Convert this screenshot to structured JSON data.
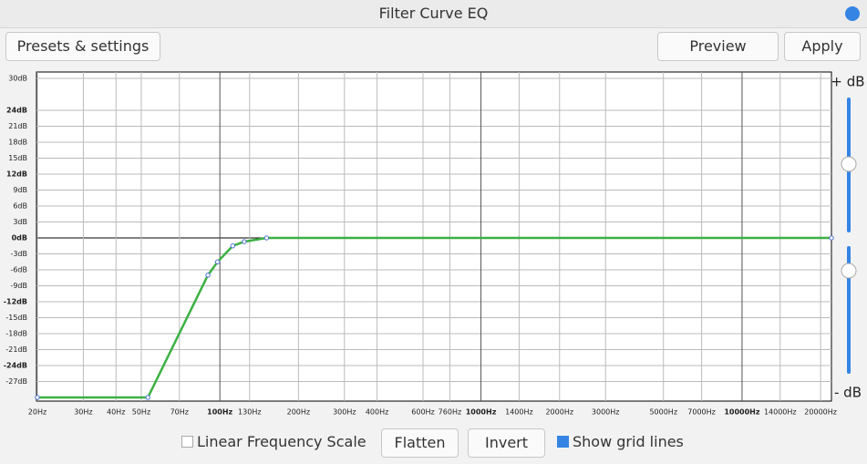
{
  "window": {
    "title": "Filter Curve EQ"
  },
  "buttons": {
    "presets": "Presets & settings",
    "preview": "Preview",
    "apply": "Apply",
    "flatten": "Flatten",
    "invert": "Invert"
  },
  "checkboxes": {
    "linear": {
      "label": "Linear Frequency Scale",
      "checked": false
    },
    "grid": {
      "label": "Show grid lines",
      "checked": true
    }
  },
  "sliders": {
    "top": "+ dB",
    "bottom": "- dB"
  },
  "chart_data": {
    "type": "line",
    "log_x": true,
    "grid": true,
    "xlim": [
      20,
      22000
    ],
    "ylim": [
      -30,
      30
    ],
    "xticks": [
      {
        "value": 20,
        "label": "20Hz"
      },
      {
        "value": 30,
        "label": "30Hz"
      },
      {
        "value": 40,
        "label": "40Hz"
      },
      {
        "value": 50,
        "label": "50Hz"
      },
      {
        "value": 70,
        "label": "70Hz"
      },
      {
        "value": 100,
        "label": "100Hz"
      },
      {
        "value": 130,
        "label": "130Hz"
      },
      {
        "value": 200,
        "label": "200Hz"
      },
      {
        "value": 300,
        "label": "300Hz"
      },
      {
        "value": 400,
        "label": "400Hz"
      },
      {
        "value": 600,
        "label": "600Hz"
      },
      {
        "value": 760,
        "label": "760Hz"
      },
      {
        "value": 1000,
        "label": "1000Hz"
      },
      {
        "value": 1400,
        "label": "1400Hz"
      },
      {
        "value": 2000,
        "label": "2000Hz"
      },
      {
        "value": 3000,
        "label": "3000Hz"
      },
      {
        "value": 5000,
        "label": "5000Hz"
      },
      {
        "value": 7000,
        "label": "7000Hz"
      },
      {
        "value": 10000,
        "label": "10000Hz"
      },
      {
        "value": 14000,
        "label": "14000Hz"
      },
      {
        "value": 20000,
        "label": "20000Hz"
      }
    ],
    "yticks": [
      {
        "value": 30,
        "label": "30dB"
      },
      {
        "value": 24,
        "label": "24dB"
      },
      {
        "value": 21,
        "label": "21dB"
      },
      {
        "value": 18,
        "label": "18dB"
      },
      {
        "value": 15,
        "label": "15dB"
      },
      {
        "value": 12,
        "label": "12dB"
      },
      {
        "value": 9,
        "label": "9dB"
      },
      {
        "value": 6,
        "label": "6dB"
      },
      {
        "value": 3,
        "label": "3dB"
      },
      {
        "value": 0,
        "label": "0dB"
      },
      {
        "value": -3,
        "label": "-3dB"
      },
      {
        "value": -6,
        "label": "-6dB"
      },
      {
        "value": -9,
        "label": "-9dB"
      },
      {
        "value": -12,
        "label": "-12dB"
      },
      {
        "value": -15,
        "label": "-15dB"
      },
      {
        "value": -18,
        "label": "-18dB"
      },
      {
        "value": -21,
        "label": "-21dB"
      },
      {
        "value": -24,
        "label": "-24dB"
      },
      {
        "value": -27,
        "label": "-27dB"
      }
    ],
    "x": [
      20,
      53,
      90,
      98,
      112,
      124,
      151,
      22000
    ],
    "series": [
      {
        "color": "#3cb043",
        "point_color": "#4a6fd0",
        "values": [
          -30,
          -30,
          -7,
          -4.5,
          -1.5,
          -0.7,
          0,
          0
        ]
      }
    ]
  }
}
